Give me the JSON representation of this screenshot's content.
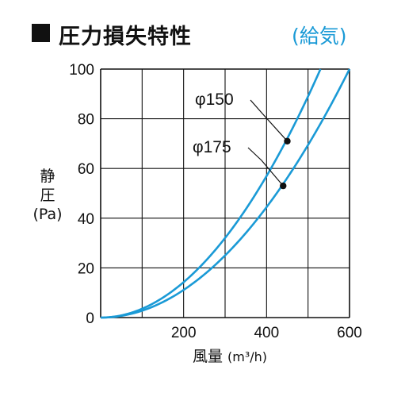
{
  "header": {
    "title": "圧力損失特性",
    "subtitle_open": "(",
    "subtitle": "給気",
    "subtitle_close": ")"
  },
  "colors": {
    "curve": "#1a9ad6",
    "grid": "#111111",
    "accent": "#1a9ad6"
  },
  "chart_data": {
    "type": "line",
    "xlabel": "風量",
    "xlabel_unit": "(m³/h)",
    "ylabel_line1": "静",
    "ylabel_line2": "圧",
    "ylabel_unit": "(Pa)",
    "xlim": [
      0,
      600
    ],
    "ylim": [
      0,
      100
    ],
    "xticks": [
      200,
      400,
      600
    ],
    "yticks": [
      0,
      20,
      40,
      60,
      80,
      100
    ],
    "grid": true,
    "series": [
      {
        "name": "φ150",
        "x": [
          0,
          100,
          200,
          300,
          400,
          450,
          530
        ],
        "y": [
          0,
          3.5,
          14.2,
          32,
          56.8,
          71.5,
          100
        ],
        "marker": {
          "x": 450,
          "y": 71
        }
      },
      {
        "name": "φ175",
        "x": [
          0,
          100,
          200,
          300,
          400,
          440,
          600
        ],
        "y": [
          0,
          3,
          11.3,
          25.5,
          45.2,
          53,
          100
        ],
        "marker": {
          "x": 440,
          "y": 53
        }
      }
    ]
  }
}
